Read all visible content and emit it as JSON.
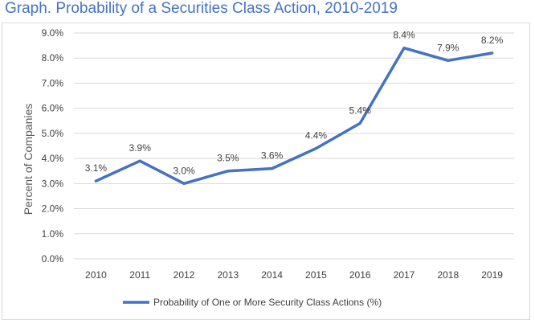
{
  "chart_data": {
    "type": "line",
    "title": "Graph. Probability of a Securities Class Action, 2010-2019",
    "xlabel": "",
    "ylabel": "Percent of Companies",
    "categories": [
      "2010",
      "2011",
      "2012",
      "2013",
      "2014",
      "2015",
      "2016",
      "2017",
      "2018",
      "2019"
    ],
    "series": [
      {
        "name": "Probability of One or More Security Class Actions (%)",
        "values": [
          3.1,
          3.9,
          3.0,
          3.5,
          3.6,
          4.4,
          5.4,
          8.4,
          7.9,
          8.2
        ],
        "data_labels": [
          "3.1%",
          "3.9%",
          "3.0%",
          "3.5%",
          "3.6%",
          "4.4%",
          "5.4%",
          "8.4%",
          "7.9%",
          "8.2%"
        ],
        "color": "#4472c4"
      }
    ],
    "ylim": [
      0,
      9
    ],
    "y_ticks": [
      0,
      1,
      2,
      3,
      4,
      5,
      6,
      7,
      8,
      9
    ],
    "y_tick_labels": [
      "0.0%",
      "1.0%",
      "2.0%",
      "3.0%",
      "4.0%",
      "5.0%",
      "6.0%",
      "7.0%",
      "8.0%",
      "9.0%"
    ],
    "grid": true,
    "legend_position": "bottom"
  },
  "colors": {
    "title": "#4472c4",
    "line": "#4472c4",
    "grid": "#d9d9d9",
    "text": "#404040"
  }
}
